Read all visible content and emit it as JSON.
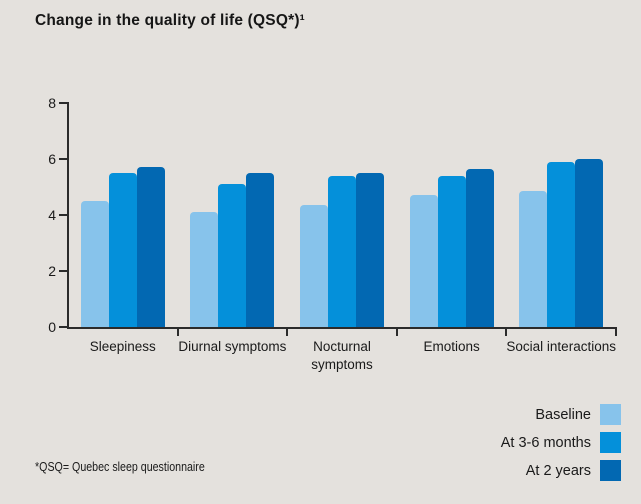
{
  "title": "Change in the quality of life (QSQ*)¹",
  "footnote": "*QSQ= Quebec sleep questionnaire",
  "colors": {
    "background": "#E4E1DD",
    "axis": "#2B2B2B",
    "text": "#1A1A1A",
    "series_baseline": "#87C3EB",
    "series_3_6_months": "#0490DA",
    "series_2_years": "#0268B2"
  },
  "legend": {
    "position": "bottom-right",
    "items": [
      {
        "label": "Baseline",
        "color": "#87C3EB"
      },
      {
        "label": "At 3-6 months",
        "color": "#0490DA"
      },
      {
        "label": "At 2 years",
        "color": "#0268B2"
      }
    ]
  },
  "chart_data": {
    "type": "bar",
    "title": "Change in the quality of life (QSQ*)¹",
    "categories": [
      "Sleepiness",
      "Diurnal symptoms",
      "Nocturnal symptoms",
      "Emotions",
      "Social interactions"
    ],
    "series": [
      {
        "name": "Baseline",
        "color": "#87C3EB",
        "values": [
          4.5,
          4.1,
          4.35,
          4.7,
          4.85
        ]
      },
      {
        "name": "At 3-6 months",
        "color": "#0490DA",
        "values": [
          5.5,
          5.1,
          5.4,
          5.4,
          5.9
        ]
      },
      {
        "name": "At 2 years",
        "color": "#0268B2",
        "values": [
          5.7,
          5.5,
          5.5,
          5.65,
          6.0
        ]
      }
    ],
    "xlabel": "",
    "ylabel": "",
    "ylim": [
      0,
      8
    ],
    "yticks": [
      0,
      2,
      4,
      6,
      8
    ],
    "grid": false,
    "legend_position": "bottom-right"
  }
}
